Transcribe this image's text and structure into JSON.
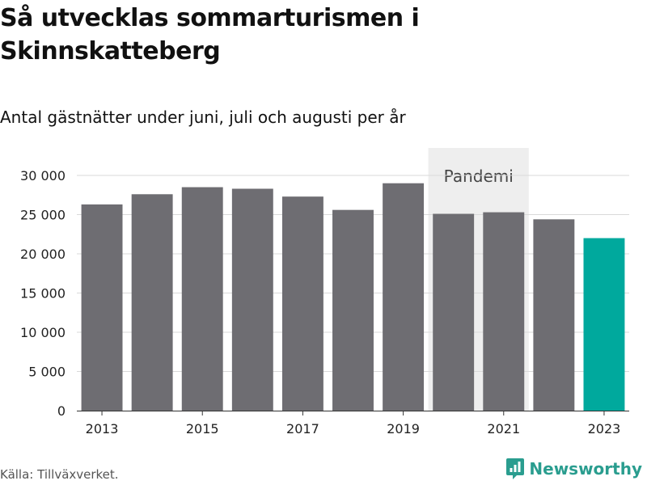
{
  "chart_data": {
    "type": "bar",
    "title": "Så utvecklas sommarturismen i Skinnskatteberg",
    "subtitle": "Antal gästnätter under juni, juli och augusti per år",
    "categories": [
      2013,
      2014,
      2015,
      2016,
      2017,
      2018,
      2019,
      2020,
      2021,
      2022,
      2023
    ],
    "values": [
      26300,
      27600,
      28500,
      28300,
      27300,
      25600,
      29000,
      25100,
      25300,
      24400,
      22000
    ],
    "x_tick_labels": [
      "2013",
      "2015",
      "2017",
      "2019",
      "2021",
      "2023"
    ],
    "y_ticks": [
      0,
      5000,
      10000,
      15000,
      20000,
      25000,
      30000
    ],
    "y_tick_labels": [
      "0",
      "5 000",
      "10 000",
      "15 000",
      "20 000",
      "25 000",
      "30 000"
    ],
    "ylim": [
      0,
      30000
    ],
    "grid": true,
    "bar_color": "#6e6d72",
    "highlight_color": "#00a99d",
    "highlight_category": 2023,
    "annotation": {
      "label": "Pandemi",
      "x_range": [
        2020,
        2021
      ],
      "color": "#eeeeee"
    }
  },
  "source": "Källa: Tillväxverket.",
  "brand": {
    "name": "Newsworthy",
    "icon": "newsworthy-logo-icon",
    "color": "#2a9d8f"
  }
}
